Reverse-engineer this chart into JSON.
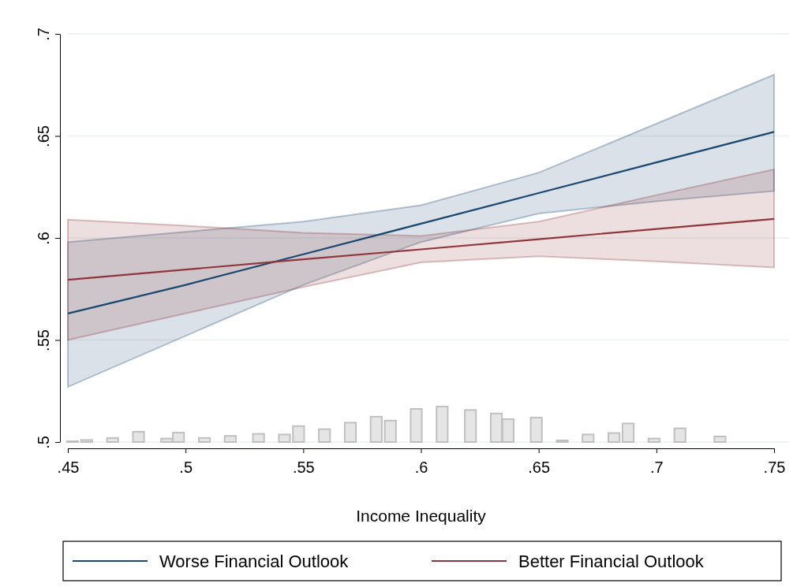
{
  "chart_data": {
    "type": "line",
    "xlabel": "Income Inequality",
    "x": [
      0.45,
      0.5,
      0.55,
      0.6,
      0.65,
      0.7,
      0.75
    ],
    "xlim": [
      0.45,
      0.75
    ],
    "xticks": [
      {
        "value": 0.45,
        "label": ".45"
      },
      {
        "value": 0.5,
        "label": ".5"
      },
      {
        "value": 0.55,
        "label": ".55"
      },
      {
        "value": 0.6,
        "label": ".6"
      },
      {
        "value": 0.65,
        "label": ".65"
      },
      {
        "value": 0.7,
        "label": ".7"
      },
      {
        "value": 0.75,
        "label": ".75"
      }
    ],
    "ylim": [
      0.5,
      0.7
    ],
    "yticks": [
      {
        "value": 0.5,
        "label": ".5"
      },
      {
        "value": 0.55,
        "label": ".55"
      },
      {
        "value": 0.6,
        "label": ".6"
      },
      {
        "value": 0.65,
        "label": ".65"
      },
      {
        "value": 0.7,
        "label": ".7"
      }
    ],
    "grid": "y",
    "legend": "bottom",
    "series": [
      {
        "type": "bar",
        "color": "#e5e5e5",
        "x": [
          0.452,
          0.458,
          0.469,
          0.48,
          0.492,
          0.497,
          0.508,
          0.519,
          0.531,
          0.542,
          0.548,
          0.559,
          0.57,
          0.581,
          0.587,
          0.598,
          0.609,
          0.621,
          0.632,
          0.637,
          0.649,
          0.66,
          0.671,
          0.682,
          0.688,
          0.699,
          0.71,
          0.727
        ],
        "values": [
          0.5004,
          0.501,
          0.502,
          0.505,
          0.5017,
          0.5046,
          0.502,
          0.503,
          0.504,
          0.5037,
          0.5078,
          0.5063,
          0.5095,
          0.5124,
          0.5105,
          0.5162,
          0.5174,
          0.5157,
          0.514,
          0.5112,
          0.512,
          0.5008,
          0.5037,
          0.5044,
          0.5091,
          0.5017,
          0.5067,
          0.5027
        ]
      },
      {
        "name": "Worse Financial Outlook",
        "color": "#1a476f",
        "values": [
          0.563,
          0.577,
          0.592,
          0.607,
          0.622,
          0.637,
          0.652
        ],
        "lower": [
          0.527,
          0.552,
          0.577,
          0.598,
          0.612,
          0.618,
          0.623
        ],
        "upper": [
          0.598,
          0.603,
          0.608,
          0.616,
          0.632,
          0.656,
          0.68
        ]
      },
      {
        "name": "Better Financial Outlook",
        "color": "#90353b",
        "values": [
          0.5795,
          0.5845,
          0.5895,
          0.5944,
          0.5994,
          0.6044,
          0.6093
        ],
        "lower": [
          0.55,
          0.563,
          0.576,
          0.588,
          0.591,
          0.5885,
          0.5855
        ],
        "upper": [
          0.609,
          0.606,
          0.6025,
          0.601,
          0.608,
          0.621,
          0.6336
        ]
      }
    ]
  }
}
